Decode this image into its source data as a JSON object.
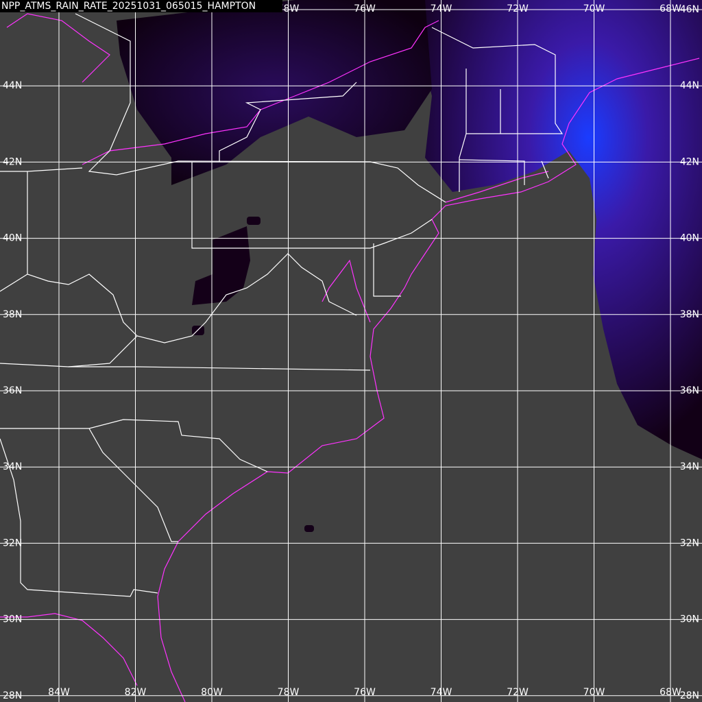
{
  "title": "NPP_ATMS_RAIN_RATE_20251031_065015_HAMPTON",
  "longitudes": [
    "84W",
    "82W",
    "80W",
    "78W",
    "76W",
    "74W",
    "72W",
    "70W",
    "68W"
  ],
  "latitudes": [
    "46N",
    "44N",
    "42N",
    "40N",
    "38N",
    "36N",
    "34N",
    "32N",
    "30N",
    "28N"
  ]
}
